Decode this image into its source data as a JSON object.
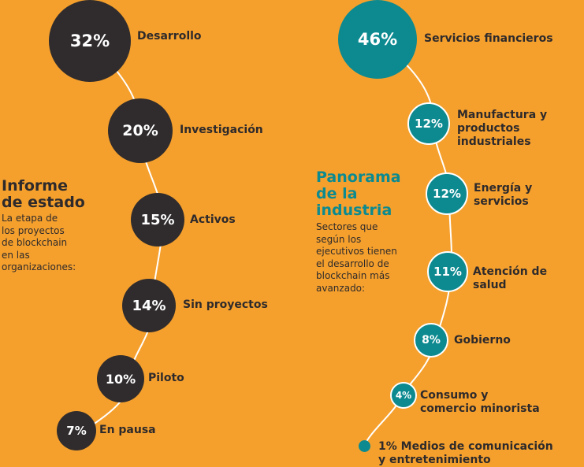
{
  "left": {
    "heading_line1": "Informe",
    "heading_line2": "de estado",
    "desc_lines": [
      "La etapa de",
      "los proyectos",
      "de blockchain",
      "en las",
      "organizaciones:"
    ],
    "items": [
      {
        "pct": "32%",
        "label": "Desarrollo",
        "value": 32
      },
      {
        "pct": "20%",
        "label": "Investigación",
        "value": 20
      },
      {
        "pct": "15%",
        "label": "Activos",
        "value": 15
      },
      {
        "pct": "14%",
        "label": "Sin proyectos",
        "value": 14
      },
      {
        "pct": "10%",
        "label": "Piloto",
        "value": 10
      },
      {
        "pct": "7%",
        "label": "En pausa",
        "value": 7
      }
    ]
  },
  "right": {
    "heading_line1": "Panorama",
    "heading_line2": "de la",
    "heading_line3": "industria",
    "desc_lines": [
      "Sectores que",
      "según los",
      "ejecutivos tienen",
      "el desarrollo de",
      "blockchain más",
      "avanzado:"
    ],
    "items": [
      {
        "pct": "46%",
        "label_line1": "Servicios financieros",
        "label_line2": "",
        "value": 46
      },
      {
        "pct": "12%",
        "label_line1": "Manufactura y",
        "label_line2": "productos industriales",
        "value": 12
      },
      {
        "pct": "12%",
        "label_line1": "Energía y",
        "label_line2": "servicios",
        "value": 12
      },
      {
        "pct": "11%",
        "label_line1": "Atención de salud",
        "label_line2": "",
        "value": 11
      },
      {
        "pct": "8%",
        "label_line1": "Gobierno",
        "label_line2": "",
        "value": 8
      },
      {
        "pct": "4%",
        "label_line1": "Consumo y",
        "label_line2": "comercio minorista",
        "value": 4
      },
      {
        "pct": "",
        "label_line1": "1% Medios de comunicación",
        "label_line2": "y entretenimiento",
        "value": 1
      }
    ]
  },
  "colors": {
    "background": "#f5a02d",
    "dark_bubble": "#302c2d",
    "teal_bubble": "#0c8a90",
    "teal_heading": "#0c8a90",
    "text": "#2e2a2b",
    "line": "#ffffff"
  }
}
